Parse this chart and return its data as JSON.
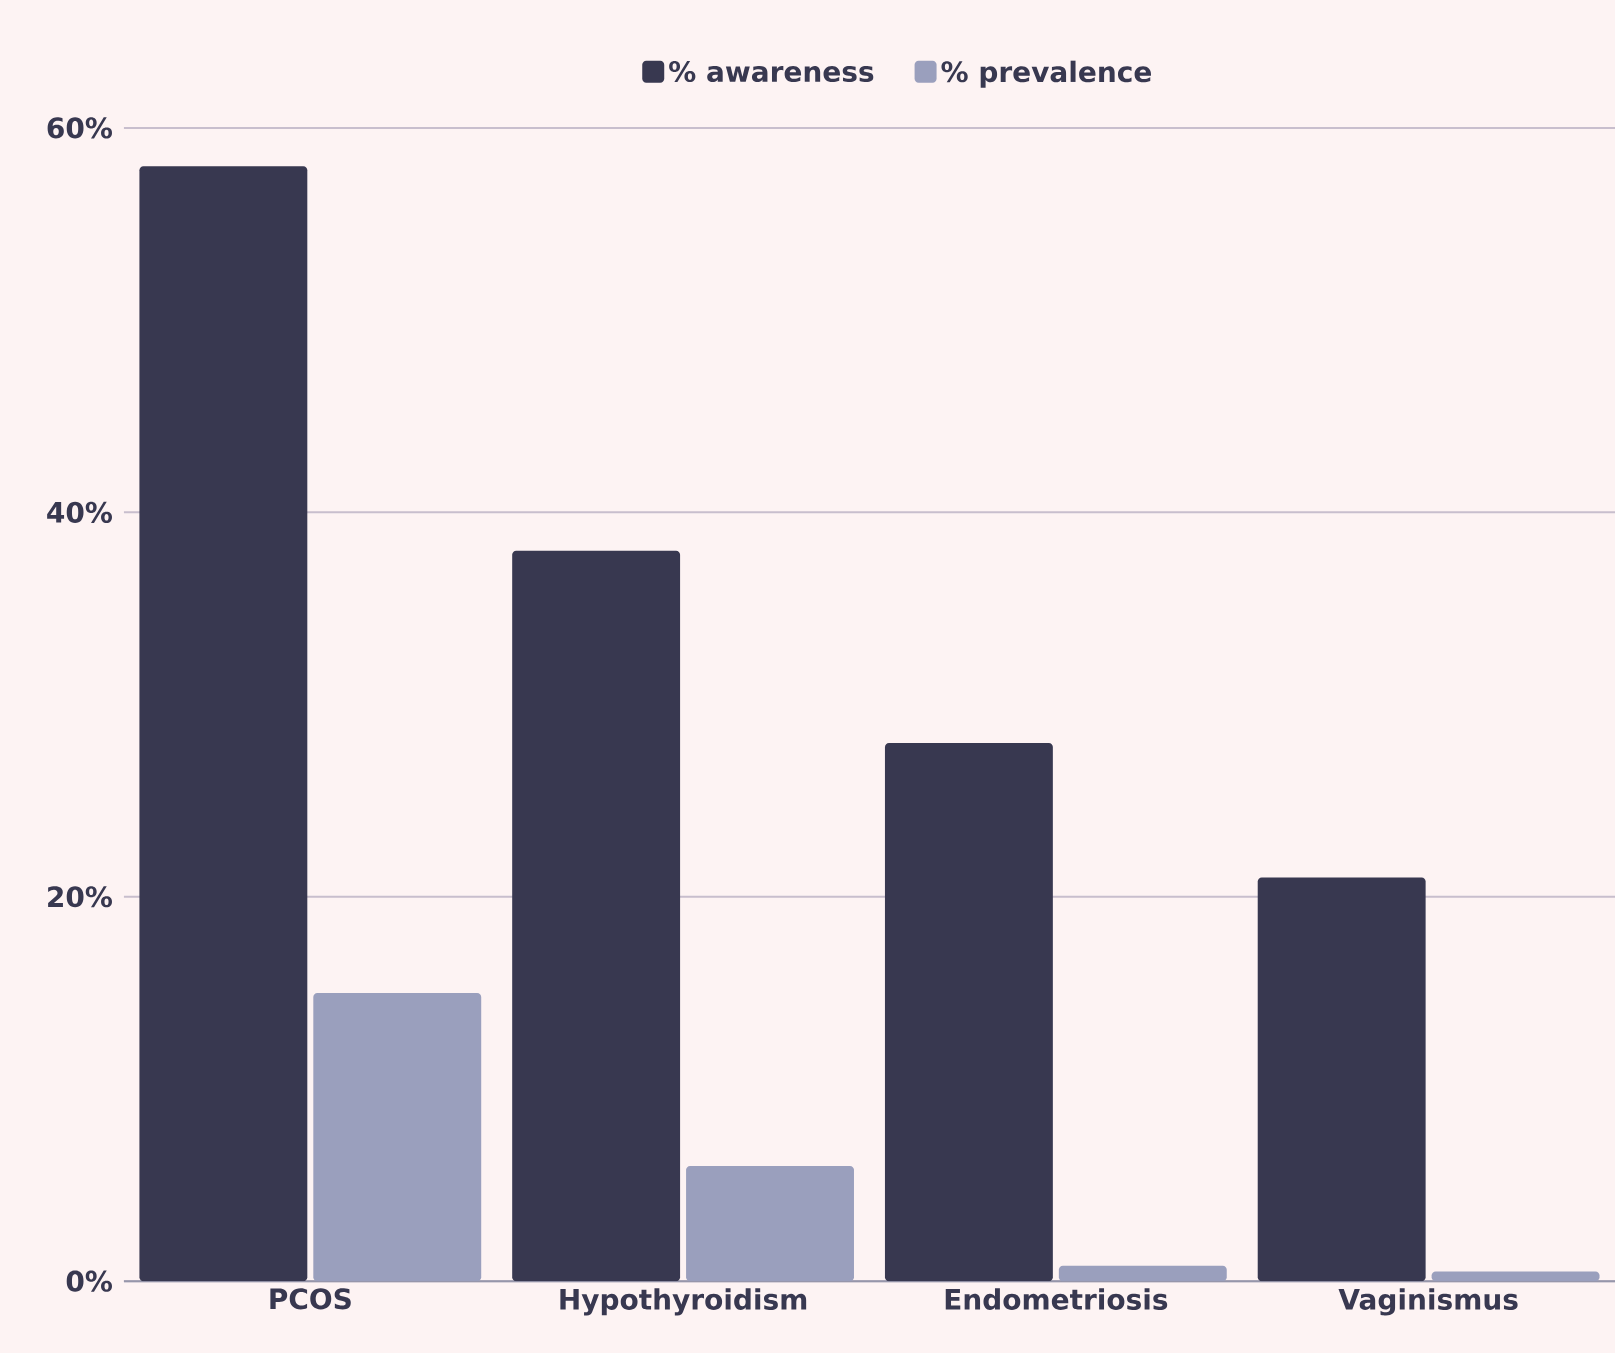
{
  "chart_data": {
    "type": "bar",
    "categories": [
      "PCOS",
      "Hypothyroidism",
      "Endometriosis",
      "Vaginismus"
    ],
    "series": [
      {
        "name": "% awareness",
        "color": "#383850",
        "values": [
          58,
          38,
          28,
          21
        ]
      },
      {
        "name": "% prevalence",
        "color": "#9a9fbd",
        "values": [
          15,
          6,
          0.8,
          0.5
        ]
      }
    ],
    "ylim": [
      0,
      60
    ],
    "yticks": [
      {
        "value": 0,
        "label": "0%"
      },
      {
        "value": 20,
        "label": "20%"
      },
      {
        "value": 40,
        "label": "40%"
      },
      {
        "value": 60,
        "label": "60%"
      }
    ],
    "grid": "y",
    "legend": "top"
  }
}
